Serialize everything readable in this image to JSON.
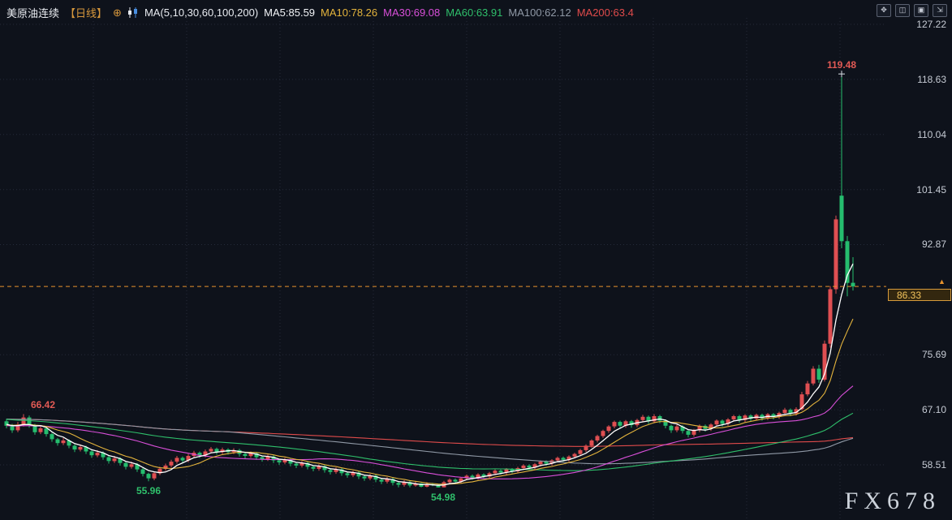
{
  "header": {
    "title": "美原油连续",
    "timeframe": "【日线】",
    "plus_icon": "⊕",
    "ma_group_label": "MA(5,10,30,60,100,200)",
    "ma_items": [
      {
        "label": "MA5:85.59",
        "color": "#f2f4f7"
      },
      {
        "label": "MA10:78.26",
        "color": "#e3b33c"
      },
      {
        "label": "MA30:69.08",
        "color": "#d94fd9"
      },
      {
        "label": "MA60:63.91",
        "color": "#2fbf6b"
      },
      {
        "label": "MA100:62.12",
        "color": "#9099a6"
      },
      {
        "label": "MA200:63.4",
        "color": "#e04b4b"
      }
    ],
    "window_controls": [
      {
        "glyph": "✥"
      },
      {
        "glyph": "◫"
      },
      {
        "glyph": "▣"
      },
      {
        "glyph": "⇲"
      }
    ]
  },
  "axis": {
    "labels": [
      "127.22",
      "118.63",
      "110.04",
      "101.45",
      "92.87",
      "75.69",
      "67.10",
      "58.51"
    ],
    "values": [
      127.22,
      118.63,
      110.04,
      101.45,
      92.87,
      75.69,
      67.1,
      58.51
    ],
    "current_price": "86.33",
    "current_price_value": 86.33,
    "arrow_glyph": "▲"
  },
  "annotations": [
    {
      "text": "66.42",
      "color": "#e25a55",
      "index": 3,
      "pos": "above",
      "dx": 24,
      "marker": false
    },
    {
      "text": "55.96",
      "color": "#2fbf6b",
      "index": 25,
      "pos": "below",
      "dx": 0,
      "marker": false
    },
    {
      "text": "54.98",
      "color": "#2fbf6b",
      "index": 76,
      "pos": "below",
      "dx": 6,
      "marker": false
    },
    {
      "text": "119.48",
      "color": "#e25a55",
      "index": 147,
      "pos": "above",
      "dx": 0,
      "marker": true
    }
  ],
  "watermark": "FX678",
  "chart_data": {
    "type": "candlestick",
    "title": "美原油连续 日线 (US Crude Oil Continuous, Daily)",
    "legend": [
      "MA5",
      "MA10",
      "MA30",
      "MA60",
      "MA100",
      "MA200"
    ],
    "price_ticks": [
      127.22,
      118.63,
      110.04,
      101.45,
      92.87,
      75.69,
      67.1,
      58.51
    ],
    "ylim": [
      49.5,
      128.5
    ],
    "grid": "dotted",
    "current_price": 86.33,
    "marked_high": 119.48,
    "marked_early_high": 66.42,
    "marked_lows": [
      55.96,
      54.98
    ],
    "ma_periods": [
      5,
      10,
      30,
      60,
      100,
      200
    ],
    "ma_values": {
      "MA5": 85.59,
      "MA10": 78.26,
      "MA30": 69.08,
      "MA60": 63.91,
      "MA100": 62.12,
      "MA200": 63.4
    },
    "ma_colors": {
      "5": "#ffffff",
      "10": "#e3b33c",
      "30": "#d94fd9",
      "60": "#2fbf6b",
      "100": "#9099a6",
      "200": "#e04b4b"
    },
    "colors": {
      "up": "#df4f52",
      "down": "#25bd6e",
      "grid": "#252b3a",
      "current_line": "#e8932c"
    },
    "prehistory_closes": [
      68.0,
      67.8,
      68.1,
      67.7,
      67.9,
      67.5,
      67.7,
      67.3,
      67.5,
      67.1,
      67.3,
      66.9,
      67.1,
      66.7,
      66.9,
      66.5,
      66.7,
      66.3,
      66.5,
      66.1,
      66.3,
      65.9,
      66.1,
      65.7,
      65.9,
      65.5,
      65.7,
      65.3,
      65.5,
      65.1,
      65.3,
      64.9,
      65.1,
      64.7,
      64.9,
      64.6,
      64.8,
      64.5,
      64.7,
      64.4,
      64.6,
      64.3,
      64.5,
      64.2,
      64.4,
      64.3,
      64.5,
      64.2,
      64.6,
      64.3,
      64.7,
      64.4,
      64.8,
      64.5,
      64.9,
      64.6,
      65.0,
      64.7,
      65.1,
      64.8
    ],
    "candles": [
      [
        65.3,
        65.7,
        64.2,
        64.6
      ],
      [
        64.6,
        64.9,
        63.5,
        63.9
      ],
      [
        63.9,
        65.2,
        63.6,
        64.8
      ],
      [
        64.8,
        66.42,
        64.5,
        65.9
      ],
      [
        65.9,
        66.2,
        64.3,
        64.7
      ],
      [
        64.7,
        64.9,
        63.2,
        63.6
      ],
      [
        63.6,
        64.6,
        63.3,
        64.2
      ],
      [
        64.2,
        64.4,
        62.9,
        63.3
      ],
      [
        63.3,
        63.5,
        62.1,
        62.5
      ],
      [
        62.5,
        62.7,
        61.5,
        61.9
      ],
      [
        61.9,
        62.7,
        61.6,
        62.3
      ],
      [
        62.3,
        62.5,
        61.1,
        61.5
      ],
      [
        61.5,
        61.7,
        60.5,
        60.9
      ],
      [
        60.9,
        61.7,
        60.6,
        61.3
      ],
      [
        61.3,
        61.5,
        60.2,
        60.6
      ],
      [
        60.6,
        60.8,
        59.6,
        60.0
      ],
      [
        60.0,
        60.8,
        59.7,
        60.4
      ],
      [
        60.4,
        60.6,
        59.3,
        59.7
      ],
      [
        59.7,
        59.9,
        58.7,
        59.1
      ],
      [
        59.1,
        59.9,
        58.8,
        59.5
      ],
      [
        59.5,
        59.7,
        58.4,
        58.8
      ],
      [
        58.8,
        59.0,
        57.8,
        58.2
      ],
      [
        58.2,
        59.0,
        57.9,
        58.6
      ],
      [
        58.6,
        58.8,
        57.4,
        57.8
      ],
      [
        57.8,
        58.0,
        56.7,
        57.1
      ],
      [
        57.1,
        57.3,
        55.96,
        56.4
      ],
      [
        56.4,
        57.5,
        56.1,
        57.2
      ],
      [
        57.2,
        58.2,
        56.9,
        57.9
      ],
      [
        57.9,
        58.7,
        57.6,
        58.4
      ],
      [
        58.4,
        59.3,
        58.1,
        59.0
      ],
      [
        59.0,
        59.9,
        58.7,
        59.6
      ],
      [
        59.6,
        59.8,
        58.8,
        59.2
      ],
      [
        59.2,
        60.2,
        58.9,
        59.9
      ],
      [
        59.9,
        60.7,
        59.6,
        60.4
      ],
      [
        60.4,
        60.6,
        59.6,
        60.0
      ],
      [
        60.0,
        60.9,
        59.7,
        60.6
      ],
      [
        60.6,
        61.3,
        60.3,
        61.0
      ],
      [
        61.0,
        61.2,
        60.1,
        60.5
      ],
      [
        60.5,
        61.2,
        60.2,
        60.9
      ],
      [
        60.9,
        61.1,
        60.1,
        60.5
      ],
      [
        60.5,
        61.1,
        60.2,
        60.8
      ],
      [
        60.8,
        61.0,
        59.8,
        60.2
      ],
      [
        60.2,
        60.4,
        59.5,
        59.9
      ],
      [
        59.9,
        60.6,
        59.6,
        60.3
      ],
      [
        60.3,
        60.5,
        59.3,
        59.7
      ],
      [
        59.7,
        59.9,
        59.0,
        59.4
      ],
      [
        59.4,
        60.1,
        59.1,
        59.8
      ],
      [
        59.8,
        60.0,
        58.8,
        59.2
      ],
      [
        59.2,
        59.4,
        58.5,
        58.9
      ],
      [
        58.9,
        59.6,
        58.6,
        59.3
      ],
      [
        59.3,
        59.5,
        58.3,
        58.7
      ],
      [
        58.7,
        58.9,
        58.0,
        58.4
      ],
      [
        58.4,
        59.1,
        58.1,
        58.8
      ],
      [
        58.8,
        59.0,
        57.8,
        58.2
      ],
      [
        58.2,
        58.4,
        57.5,
        57.9
      ],
      [
        57.9,
        58.6,
        57.6,
        58.3
      ],
      [
        58.3,
        58.5,
        57.3,
        57.7
      ],
      [
        57.7,
        57.9,
        57.0,
        57.4
      ],
      [
        57.4,
        58.1,
        57.1,
        57.8
      ],
      [
        57.8,
        58.0,
        56.8,
        57.2
      ],
      [
        57.2,
        57.4,
        56.5,
        56.9
      ],
      [
        56.9,
        57.6,
        56.6,
        57.3
      ],
      [
        57.3,
        57.5,
        56.3,
        56.7
      ],
      [
        56.7,
        56.9,
        56.0,
        56.4
      ],
      [
        56.4,
        57.1,
        56.1,
        56.8
      ],
      [
        56.8,
        57.0,
        55.8,
        56.2
      ],
      [
        56.2,
        56.4,
        55.5,
        55.9
      ],
      [
        55.9,
        56.6,
        55.6,
        56.3
      ],
      [
        56.3,
        56.5,
        55.3,
        55.7
      ],
      [
        55.7,
        55.9,
        55.0,
        55.4
      ],
      [
        55.4,
        56.1,
        55.1,
        55.8
      ],
      [
        55.8,
        56.0,
        55.0,
        55.3
      ],
      [
        55.3,
        55.9,
        55.1,
        55.6
      ],
      [
        55.6,
        55.7,
        55.0,
        55.1
      ],
      [
        55.1,
        55.8,
        55.0,
        55.5
      ],
      [
        55.5,
        55.7,
        55.2,
        55.4
      ],
      [
        55.4,
        55.5,
        54.98,
        55.0
      ],
      [
        55.0,
        56.0,
        55.0,
        55.8
      ],
      [
        55.8,
        56.4,
        55.5,
        56.2
      ],
      [
        56.2,
        56.4,
        55.6,
        55.9
      ],
      [
        55.9,
        56.6,
        55.6,
        56.4
      ],
      [
        56.4,
        57.0,
        56.1,
        56.8
      ],
      [
        56.8,
        57.0,
        56.2,
        56.5
      ],
      [
        56.5,
        57.2,
        56.2,
        57.0
      ],
      [
        57.0,
        57.2,
        56.4,
        56.7
      ],
      [
        56.7,
        57.4,
        56.4,
        57.2
      ],
      [
        57.2,
        57.8,
        56.9,
        57.6
      ],
      [
        57.6,
        57.8,
        57.0,
        57.3
      ],
      [
        57.3,
        58.0,
        57.0,
        57.8
      ],
      [
        57.8,
        58.0,
        57.2,
        57.5
      ],
      [
        57.5,
        58.2,
        57.2,
        58.0
      ],
      [
        58.0,
        58.6,
        57.7,
        58.4
      ],
      [
        58.4,
        58.6,
        57.8,
        58.1
      ],
      [
        58.1,
        58.8,
        57.8,
        58.6
      ],
      [
        58.6,
        59.2,
        58.3,
        59.0
      ],
      [
        59.0,
        59.2,
        58.4,
        58.7
      ],
      [
        58.7,
        59.4,
        58.4,
        59.2
      ],
      [
        59.2,
        59.8,
        58.9,
        59.6
      ],
      [
        59.6,
        59.8,
        59.0,
        59.3
      ],
      [
        59.3,
        60.0,
        59.0,
        59.8
      ],
      [
        59.8,
        60.4,
        59.5,
        60.2
      ],
      [
        60.2,
        61.0,
        59.9,
        60.8
      ],
      [
        60.8,
        61.7,
        60.5,
        61.5
      ],
      [
        61.5,
        62.5,
        61.2,
        62.3
      ],
      [
        62.3,
        63.2,
        62.0,
        63.0
      ],
      [
        63.0,
        64.0,
        62.7,
        63.8
      ],
      [
        63.8,
        64.7,
        63.5,
        64.5
      ],
      [
        64.5,
        65.4,
        64.2,
        65.2
      ],
      [
        65.2,
        65.4,
        64.2,
        64.6
      ],
      [
        64.6,
        65.5,
        64.3,
        65.3
      ],
      [
        65.3,
        65.5,
        64.3,
        64.7
      ],
      [
        64.7,
        65.7,
        64.4,
        65.5
      ],
      [
        65.5,
        66.3,
        65.2,
        66.0
      ],
      [
        66.0,
        66.2,
        64.9,
        65.3
      ],
      [
        65.3,
        66.4,
        65.0,
        66.1
      ],
      [
        66.1,
        66.3,
        65.0,
        65.4
      ],
      [
        65.4,
        65.6,
        64.2,
        64.6
      ],
      [
        64.6,
        64.8,
        63.5,
        63.9
      ],
      [
        63.9,
        64.8,
        63.6,
        64.5
      ],
      [
        64.5,
        64.7,
        63.4,
        63.8
      ],
      [
        63.8,
        64.0,
        62.8,
        63.2
      ],
      [
        63.2,
        64.1,
        62.9,
        63.9
      ],
      [
        63.9,
        64.8,
        63.6,
        64.6
      ],
      [
        64.6,
        64.8,
        63.7,
        64.1
      ],
      [
        64.1,
        65.0,
        63.8,
        64.8
      ],
      [
        64.8,
        65.6,
        64.5,
        65.4
      ],
      [
        65.4,
        65.6,
        64.5,
        64.9
      ],
      [
        64.9,
        65.8,
        64.6,
        65.6
      ],
      [
        65.6,
        66.3,
        65.3,
        66.1
      ],
      [
        66.1,
        66.3,
        65.1,
        65.5
      ],
      [
        65.5,
        66.4,
        65.2,
        66.2
      ],
      [
        66.2,
        66.4,
        65.3,
        65.7
      ],
      [
        65.7,
        66.5,
        65.4,
        66.3
      ],
      [
        66.3,
        66.5,
        65.4,
        65.8
      ],
      [
        65.8,
        66.6,
        65.5,
        66.4
      ],
      [
        66.4,
        66.6,
        65.6,
        66.0
      ],
      [
        66.0,
        66.8,
        65.7,
        66.6
      ],
      [
        66.6,
        67.4,
        66.3,
        67.1
      ],
      [
        67.1,
        67.3,
        66.1,
        66.5
      ],
      [
        66.5,
        67.5,
        66.2,
        67.2
      ],
      [
        67.2,
        69.9,
        67.0,
        69.5
      ],
      [
        69.5,
        71.6,
        69.2,
        71.2
      ],
      [
        71.2,
        73.9,
        70.9,
        73.5
      ],
      [
        73.5,
        74.1,
        71.3,
        71.8
      ],
      [
        71.8,
        77.9,
        71.5,
        77.4
      ],
      [
        77.4,
        86.4,
        76.8,
        85.9
      ],
      [
        85.9,
        97.4,
        85.2,
        96.8
      ],
      [
        100.5,
        119.48,
        92.3,
        93.4
      ],
      [
        93.4,
        94.2,
        84.8,
        86.9
      ],
      [
        86.9,
        90.9,
        85.7,
        86.33
      ]
    ]
  }
}
